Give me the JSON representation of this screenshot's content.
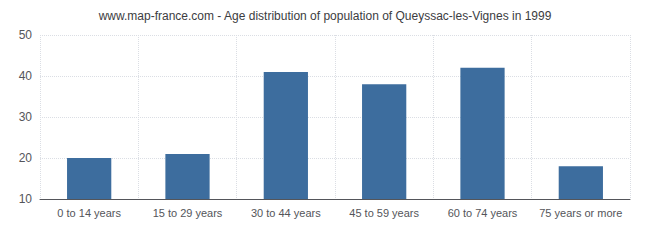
{
  "chart_data": {
    "type": "bar",
    "title": "www.map-france.com - Age distribution of population of Queyssac-les-Vignes in 1999",
    "categories": [
      "0 to 14 years",
      "15 to 29 years",
      "30 to 44 years",
      "45 to 59 years",
      "60 to 74 years",
      "75 years or more"
    ],
    "values": [
      20,
      21,
      41,
      38,
      42,
      18
    ],
    "color": "#3d6d9e",
    "ylim": [
      10,
      50
    ],
    "yticks": [
      10,
      20,
      30,
      40,
      50
    ],
    "grid": true
  }
}
